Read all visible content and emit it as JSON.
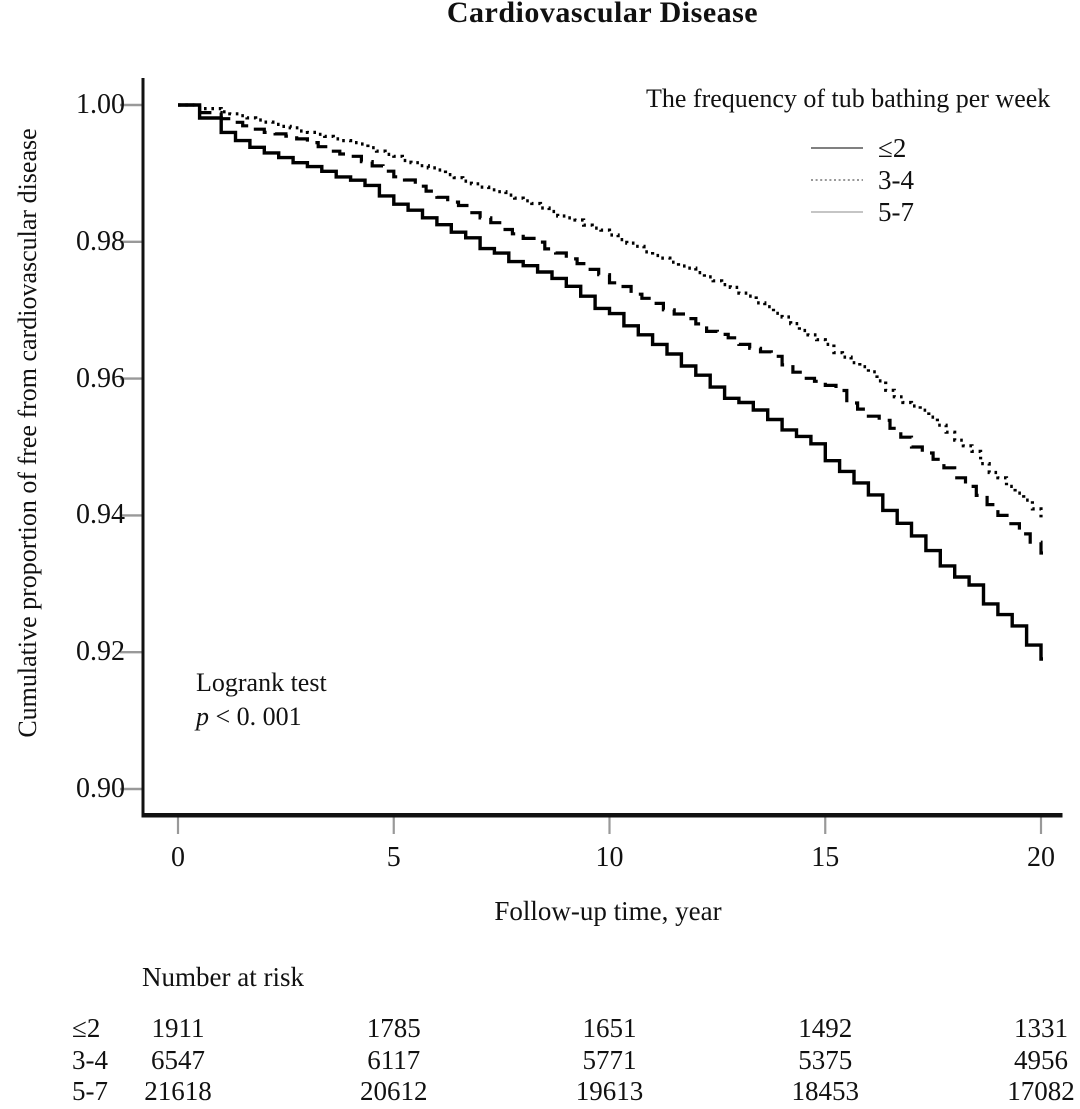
{
  "chart_data": {
    "type": "line",
    "subtype": "kaplan-meier-step",
    "title": "Cardiovascular Disease",
    "xlabel": "Follow-up time, year",
    "ylabel": "Cumulative proportion of free from cardiovascular disease",
    "xlim": [
      0,
      20
    ],
    "ylim": [
      0.9,
      1.0
    ],
    "x_tick_values": [
      0,
      5,
      10,
      15,
      20
    ],
    "x_tick_labels": [
      "0",
      "5",
      "10",
      "15",
      "20"
    ],
    "y_tick_values": [
      1.0,
      0.98,
      0.96,
      0.94,
      0.92,
      0.9
    ],
    "y_tick_labels": [
      "1.00",
      "0.98",
      "0.96",
      "0.94",
      "0.92",
      "0.90"
    ],
    "grid": false,
    "line_color": "#000000",
    "legend_position": "top-right",
    "legend_title": "The frequency of tub bathing per week",
    "x": [
      0,
      1,
      2,
      3,
      4,
      5,
      6,
      7,
      8,
      9,
      10,
      11,
      12,
      13,
      14,
      15,
      16,
      17,
      18,
      19,
      20
    ],
    "series": [
      {
        "name": "≤2",
        "style": "solid",
        "legend_color": "#6e6e6e",
        "legend_dash": "",
        "values": [
          1.0,
          0.996,
          0.993,
          0.991,
          0.989,
          0.9855,
          0.9825,
          0.979,
          0.9765,
          0.9735,
          0.9695,
          0.965,
          0.9605,
          0.9565,
          0.9525,
          0.948,
          0.943,
          0.937,
          0.931,
          0.9255,
          0.919
        ]
      },
      {
        "name": "3-4",
        "style": "dashed",
        "legend_color": "#8a8a8a",
        "legend_dash": "2 2.6",
        "values": [
          1.0,
          0.998,
          0.996,
          0.9945,
          0.9925,
          0.9895,
          0.9865,
          0.9835,
          0.9805,
          0.9775,
          0.974,
          0.971,
          0.968,
          0.965,
          0.962,
          0.959,
          0.9545,
          0.95,
          0.9455,
          0.94,
          0.9345
        ]
      },
      {
        "name": "5-7",
        "style": "dotted",
        "legend_color": "#bdbdbd",
        "legend_dash": "",
        "values": [
          1.0,
          0.999,
          0.9975,
          0.996,
          0.9945,
          0.9925,
          0.9905,
          0.988,
          0.986,
          0.9835,
          0.981,
          0.978,
          0.9755,
          0.9725,
          0.969,
          0.965,
          0.961,
          0.956,
          0.951,
          0.9455,
          0.9395
        ]
      }
    ],
    "annotation": {
      "line1": "Logrank test",
      "p_italic": "p",
      "p_rest": " < 0. 001"
    },
    "number_at_risk": {
      "header": "Number at risk",
      "time_points": [
        0,
        5,
        10,
        15,
        20
      ],
      "rows": [
        {
          "label": "≤2",
          "values": [
            1911,
            1785,
            1651,
            1492,
            1331
          ]
        },
        {
          "label": "3-4",
          "values": [
            6547,
            6117,
            5771,
            5375,
            4956
          ]
        },
        {
          "label": "5-7",
          "values": [
            21618,
            20612,
            19613,
            18453,
            17082
          ]
        }
      ]
    }
  }
}
